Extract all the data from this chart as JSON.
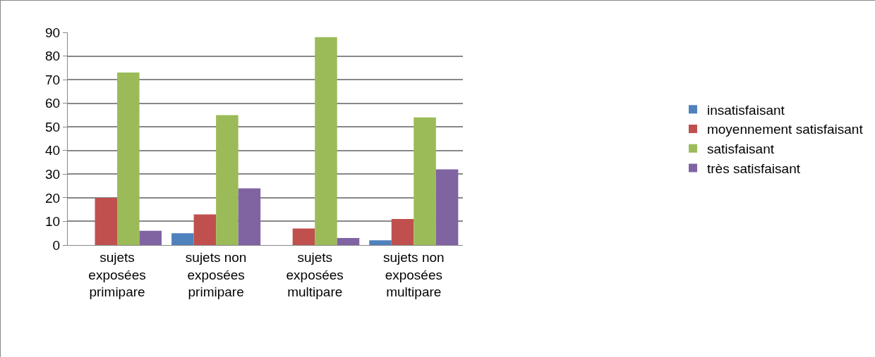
{
  "chart_data": {
    "type": "bar",
    "categories": [
      "sujets exposées primipare",
      "sujets non exposées primipare",
      "sujets exposées multipare",
      "sujets non exposées multipare"
    ],
    "series": [
      {
        "name": "insatisfaisant",
        "color": "#4f81bd",
        "values": [
          0,
          5,
          0,
          2
        ]
      },
      {
        "name": "moyennement satisfaisant",
        "color": "#c0504d",
        "values": [
          20,
          13,
          7,
          11
        ]
      },
      {
        "name": "satisfaisant",
        "color": "#9bbb59",
        "values": [
          73,
          55,
          88,
          54
        ]
      },
      {
        "name": "très satisfaisant",
        "color": "#8064a2",
        "values": [
          6,
          24,
          3,
          32
        ]
      }
    ],
    "ylim": [
      0,
      90
    ],
    "yticks": [
      0,
      10,
      20,
      30,
      40,
      50,
      60,
      70,
      80,
      90
    ],
    "grid": "y",
    "legend": "right"
  }
}
